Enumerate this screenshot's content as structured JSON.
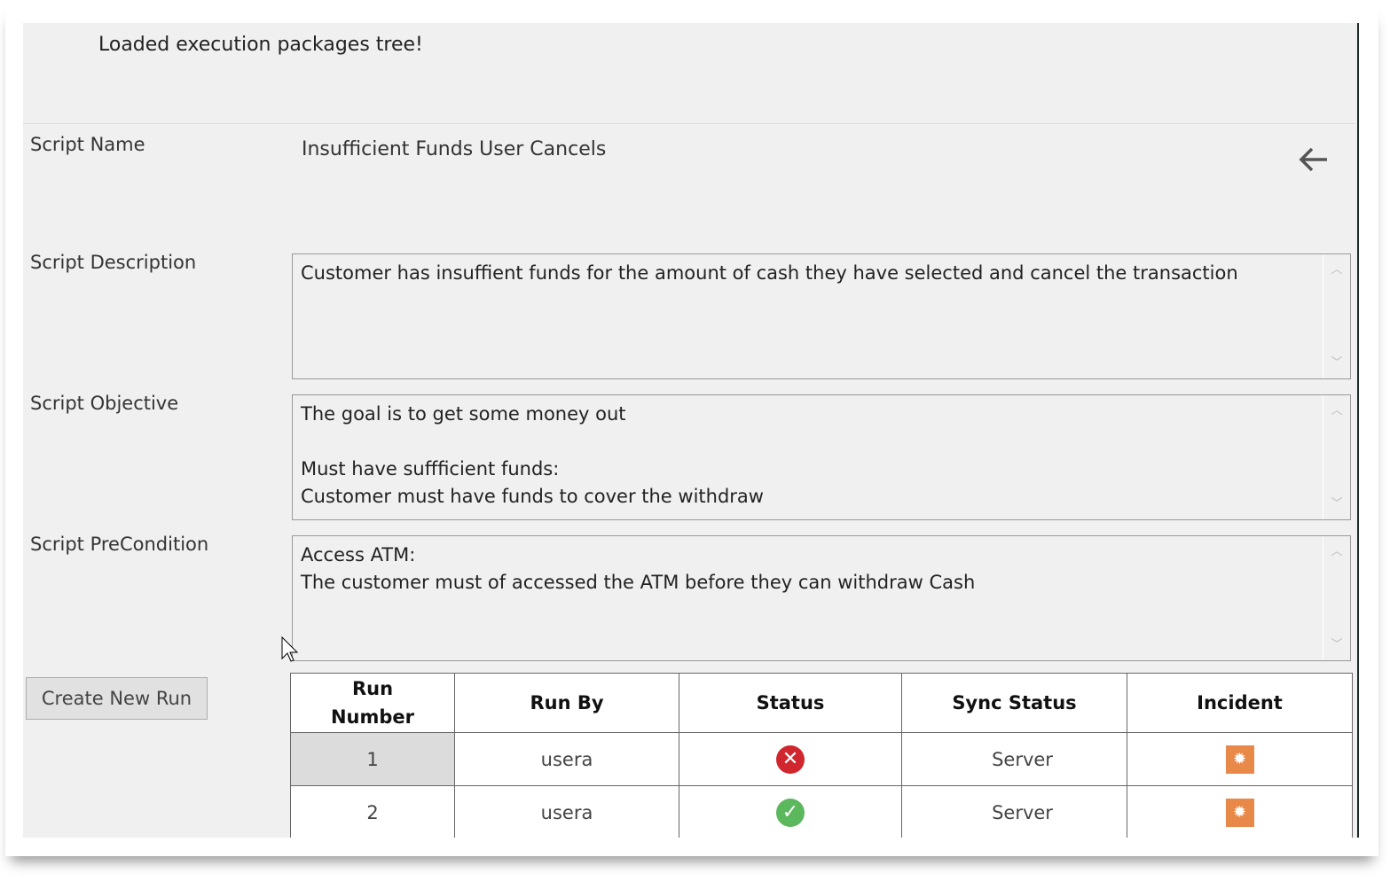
{
  "status_message": "Loaded execution packages tree!",
  "fields": {
    "name_label": "Script Name",
    "name_value": "Insufficient Funds User Cancels",
    "description_label": "Script Description",
    "description_value": "Customer has insuffient funds for the amount of cash they have selected and cancel the transaction",
    "objective_label": "Script Objective",
    "objective_value": "The goal is to get some money out\n\nMust have suffficient funds:\nCustomer must have funds to cover the withdraw",
    "precondition_label": "Script PreCondition",
    "precondition_value": "Access ATM:\nThe customer must of accessed the ATM before they can withdraw Cash"
  },
  "create_run_label": "Create New Run",
  "table": {
    "headers": [
      "Run\nNumber",
      "Run By",
      "Status",
      "Sync Status",
      "Incident"
    ],
    "rows": [
      {
        "run": "1",
        "by": "usera",
        "status": "failed",
        "sync": "Server",
        "incident": "bug-icon"
      },
      {
        "run": "2",
        "by": "usera",
        "status": "passed",
        "sync": "Server",
        "incident": "bug-icon"
      }
    ]
  },
  "colors": {
    "failed": "#d0262e",
    "passed": "#5cb85c",
    "incident": "#e8894a"
  }
}
